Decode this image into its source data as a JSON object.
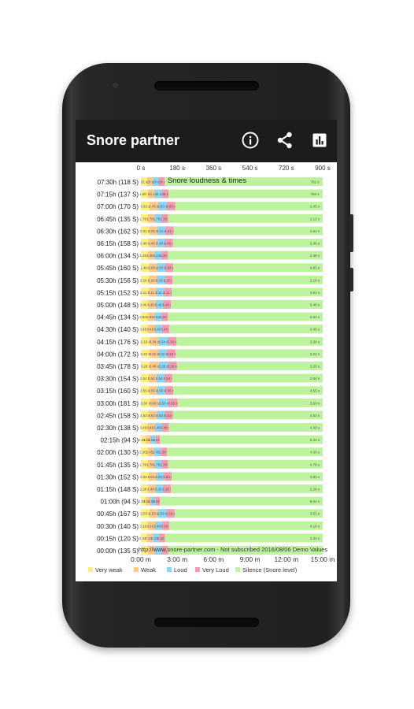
{
  "toolbar": {
    "title": "Snore partner",
    "icons": [
      "info-icon",
      "share-icon",
      "bar-chart-icon"
    ]
  },
  "colors": {
    "toolbar": "#1c1c1c",
    "very_weak": "#fbf07a",
    "weak": "#fcc98a",
    "loud": "#8ad6f5",
    "very_loud": "#f59bb0",
    "silence": "#bdf39c"
  },
  "chart_data": {
    "type": "bar",
    "stacked": true,
    "orientation": "horizontal",
    "title": "Snore loudness & times",
    "top_axis_ticks": [
      "0 s",
      "180 s",
      "360 s",
      "540 s",
      "720 s",
      "900 s"
    ],
    "bottom_axis_ticks": [
      "0:00 m",
      "3:00 m",
      "6:00 m",
      "9:00 m",
      "12:00 m",
      "15:00 m"
    ],
    "xlim": [
      0,
      900
    ],
    "footer_text": "http://www.snore-partner.com - Not subscribed 2016/08/06 Demo Values",
    "legend_position": "bottom",
    "legend": [
      {
        "label": "Very weak",
        "color": "#fbf07a"
      },
      {
        "label": "Weak",
        "color": "#fcc98a"
      },
      {
        "label": "Loud",
        "color": "#8ad6f5"
      },
      {
        "label": "Very Loud",
        "color": "#f59bb0"
      },
      {
        "label": "Silence (Snore level)",
        "color": "#bdf39c"
      }
    ],
    "categories": [
      "07:30h (118 S)",
      "07:15h (137 S)",
      "07:00h (170 S)",
      "06:45h (135 S)",
      "06:30h (162 S)",
      "06:15h (158 S)",
      "06:00h (134 S)",
      "05:45h (160 S)",
      "05:30h (156 S)",
      "05:15h (152 S)",
      "05:00h (148 S)",
      "04:45h (134 S)",
      "04:30h (140 S)",
      "04:15h (176 S)",
      "04:00h (172 S)",
      "03:45h (178 S)",
      "03:30h (154 S)",
      "03:15h (160 S)",
      "03:00h (181 S)",
      "02:45h (158 S)",
      "02:30h (138 S)",
      "02:15h (94 S)",
      "02:00h (130 S)",
      "01:45h (135 S)",
      "01:30h (152 S)",
      "01:15h (148 S)",
      "01:00h (94 S)",
      "00:45h (167 S)",
      "00:30h (140 S)",
      "00:15h (120 S)",
      "00:00h (135 S)"
    ],
    "series": [
      {
        "name": "Very weak",
        "values": [
          31,
          34,
          42,
          34,
          40,
          40,
          34,
          40,
          39,
          38,
          37,
          34,
          35,
          44,
          43,
          44,
          39,
          40,
          45,
          40,
          35,
          24,
          33,
          34,
          38,
          37,
          24,
          42,
          35,
          30,
          34
        ]
      },
      {
        "name": "Weak",
        "values": [
          29,
          34,
          43,
          34,
          41,
          39,
          33,
          40,
          39,
          38,
          37,
          33,
          35,
          44,
          43,
          45,
          38,
          40,
          45,
          39,
          34,
          23,
          32,
          34,
          38,
          37,
          23,
          42,
          35,
          30,
          34
        ]
      },
      {
        "name": "Loud",
        "values": [
          29,
          34,
          42,
          33,
          40,
          40,
          34,
          40,
          39,
          38,
          37,
          34,
          35,
          44,
          43,
          44,
          39,
          40,
          45,
          40,
          35,
          24,
          33,
          33,
          38,
          37,
          24,
          42,
          35,
          30,
          33
        ]
      },
      {
        "name": "Very Loud",
        "values": [
          29,
          35,
          43,
          34,
          41,
          39,
          33,
          40,
          39,
          38,
          37,
          33,
          35,
          44,
          43,
          45,
          38,
          40,
          46,
          39,
          34,
          23,
          32,
          34,
          38,
          37,
          23,
          41,
          35,
          30,
          34
        ]
      },
      {
        "name": "Silence (Snore level)",
        "values": [
          782,
          763,
          730,
          765,
          738,
          742,
          766,
          740,
          744,
          748,
          752,
          766,
          760,
          724,
          728,
          722,
          746,
          740,
          719,
          742,
          762,
          806,
          770,
          765,
          748,
          752,
          806,
          733,
          760,
          780,
          765
        ]
      }
    ],
    "bar_labels": [
      [
        "31 s",
        "29 s",
        "29 s",
        "29 s",
        "782 s"
      ],
      [
        "1.8h s",
        "34 s",
        "34 s",
        "35 s",
        "763 s"
      ],
      [
        "3.83 s",
        "2.45 s",
        "3.83 s",
        "3.83 s",
        "2.45 s"
      ],
      [
        "1.78 s",
        "1.78 s",
        "1.78 s",
        "1.78 s",
        "2.12 s"
      ],
      [
        "2.01 s",
        "2.01 s",
        "2.01 s",
        "2.01 s",
        "4.51 s"
      ],
      [
        "2.48 s",
        "2.48 s",
        "2.48 s",
        "2.48 s",
        "2.46 s"
      ],
      [
        "1.48 s",
        "1.48 s",
        "3.24 s",
        "2.48 s",
        "2.48 s"
      ],
      [
        "1.48 s",
        "2.83 s",
        "2.83 s",
        "2.83 s",
        "4.83 s"
      ],
      [
        "2.16 s",
        "2.18 s",
        "2.18 s",
        "2.16 s",
        "2.16 s"
      ],
      [
        "3.11 s",
        "3.11 s",
        "3.11 s",
        "3.11 s",
        "4.51 s"
      ],
      [
        "3.46 s",
        "3.46 s",
        "3.46 s",
        "3.46 s",
        "5.48 s"
      ],
      [
        "2.84 s",
        "2.84 s",
        "2.84 s",
        "2.84 s",
        "5.84 s"
      ],
      [
        "3.45 s",
        "3.45 s",
        "3.45 s",
        "3.45 s",
        "2.45 s"
      ],
      [
        "2.16 s",
        "3.34 s",
        "3.34 s",
        "3.34 s",
        "3.34 s"
      ],
      [
        "3.22 s",
        "3.22 s",
        "3.22 s",
        "3.22 s",
        "3.22 s"
      ],
      [
        "3.28 s",
        "3.48 s",
        "3.28 s",
        "3.28 s",
        "3.28 s"
      ],
      [
        "2.54 s",
        "2.54 s",
        "2.54 s",
        "2.54 s",
        "2.54 s"
      ],
      [
        "2.55 s",
        "2.55 s",
        "2.55 s",
        "2.55 s",
        "4.55 s"
      ],
      [
        "3.60 s",
        "3.60 s",
        "3.60 s",
        "3.60 s",
        "3.60 s"
      ],
      [
        "3.53 s",
        "3.53 s",
        "3.53 s",
        "3.53 s",
        "4.53 s"
      ],
      [
        "3.49 s",
        "3.49 s",
        "3.49 s",
        "3.49 s",
        "4.49 s"
      ],
      [
        "2.24 s",
        "1.24 s",
        "1.24 s",
        "1.24 s",
        "8.44 s"
      ],
      [
        "2.30 s",
        "2.45 s",
        "2.45 s",
        "2.30 s",
        "4.30 s"
      ],
      [
        "1.78 s",
        "1.78 s",
        "1.78 s",
        "1.78 s",
        "4.78 s"
      ],
      [
        "4.83 s",
        "4.83 s",
        "4.83 s",
        "1.53 s",
        "4.83 s"
      ],
      [
        "2.28 s",
        "1.48 s",
        "3.28 s",
        "2.28 s",
        "2.28 s"
      ],
      [
        "1.44 s",
        "1.44 s",
        "1.44 s",
        "1.44 s",
        "8.44 s"
      ],
      [
        "2.53 s",
        "2.53 s",
        "2.53 s",
        "2.53 s",
        "3.53 s"
      ],
      [
        "3.16 s",
        "3.16 s",
        "3.40 s",
        "3.16 s",
        "4.16 s"
      ],
      [
        "2.34 s",
        "2.34 s",
        "2.34 s",
        "2.34 s",
        "4.34 s"
      ],
      [
        "",
        "",
        "",
        "",
        ""
      ]
    ],
    "grid": false
  }
}
